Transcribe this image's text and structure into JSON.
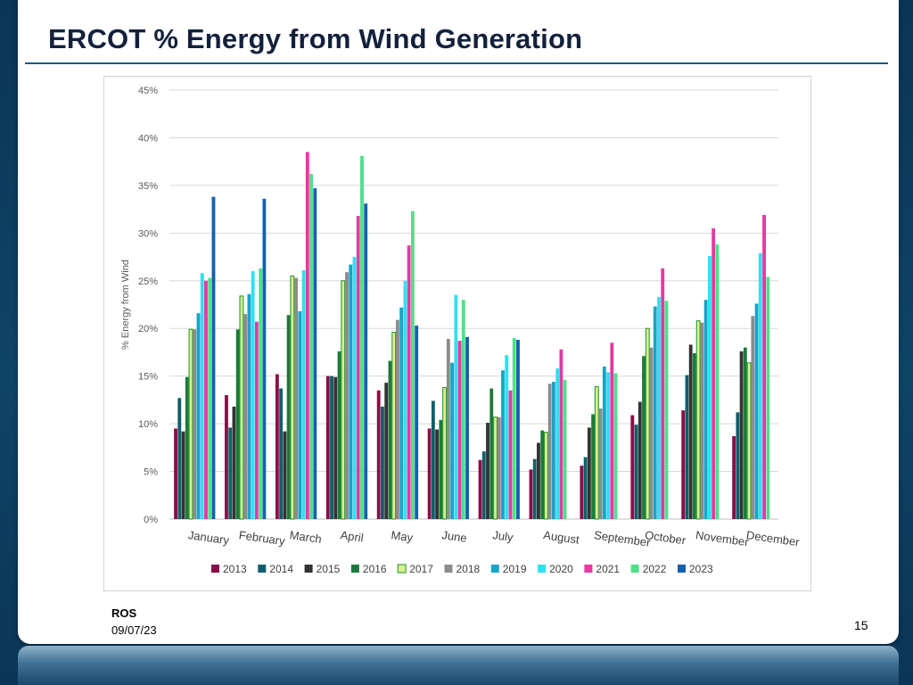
{
  "slide": {
    "title": "ERCOT % Energy from Wind Generation",
    "footer_org": "ROS",
    "footer_date": "09/07/23",
    "page_number": "15"
  },
  "chart_data": {
    "type": "bar",
    "title": "",
    "xlabel": "",
    "ylabel": "% Energy from Wind",
    "ylim": [
      0,
      45
    ],
    "y_ticks": [
      0,
      5,
      10,
      15,
      20,
      25,
      30,
      35,
      40,
      45
    ],
    "y_tick_labels": [
      "0%",
      "5%",
      "10%",
      "15%",
      "20%",
      "25%",
      "30%",
      "35%",
      "40%",
      "45%"
    ],
    "grid": true,
    "legend_position": "bottom",
    "categories": [
      "January",
      "February",
      "March",
      "April",
      "May",
      "June",
      "July",
      "August",
      "September",
      "October",
      "November",
      "December"
    ],
    "series": [
      {
        "name": "2013",
        "color": "#8b0d47",
        "values": [
          9.5,
          13.0,
          15.2,
          15.0,
          13.5,
          9.5,
          6.2,
          5.2,
          5.6,
          10.9,
          11.4,
          8.7
        ]
      },
      {
        "name": "2014",
        "color": "#0f5f6a",
        "values": [
          12.7,
          9.6,
          13.7,
          15.0,
          11.8,
          12.4,
          7.1,
          6.3,
          6.5,
          9.9,
          15.1,
          11.2
        ]
      },
      {
        "name": "2015",
        "color": "#333333",
        "values": [
          9.2,
          11.8,
          9.2,
          14.9,
          14.3,
          9.4,
          10.1,
          8.0,
          9.6,
          12.3,
          18.3,
          17.6
        ]
      },
      {
        "name": "2016",
        "color": "#1e7a3c",
        "values": [
          14.9,
          19.9,
          21.4,
          17.6,
          16.6,
          10.4,
          13.7,
          9.3,
          11.0,
          17.1,
          17.4,
          18.0
        ]
      },
      {
        "name": "2017",
        "color": "#d6f28b",
        "stroke": "#2f9a3c",
        "values": [
          19.9,
          23.4,
          25.5,
          25.0,
          19.6,
          13.8,
          10.7,
          9.1,
          13.9,
          20.0,
          20.8,
          16.4
        ]
      },
      {
        "name": "2018",
        "color": "#8c8c8c",
        "values": [
          19.9,
          21.5,
          25.3,
          25.9,
          20.9,
          18.9,
          10.7,
          14.2,
          11.6,
          18.0,
          20.6,
          21.3
        ]
      },
      {
        "name": "2019",
        "color": "#1aa3c7",
        "values": [
          21.6,
          23.6,
          21.8,
          26.7,
          22.2,
          16.4,
          15.6,
          14.4,
          16.0,
          22.3,
          23.0,
          22.6
        ]
      },
      {
        "name": "2020",
        "color": "#2fe0f2",
        "values": [
          25.8,
          26.0,
          26.1,
          27.5,
          25.0,
          23.5,
          17.2,
          15.8,
          15.4,
          23.3,
          27.6,
          27.9
        ]
      },
      {
        "name": "2021",
        "color": "#e23aa0",
        "values": [
          25.0,
          20.7,
          38.5,
          31.8,
          28.7,
          18.7,
          13.5,
          17.8,
          18.5,
          26.3,
          30.5,
          31.9
        ]
      },
      {
        "name": "2022",
        "color": "#4fe08a",
        "values": [
          25.3,
          26.3,
          36.2,
          38.1,
          32.3,
          23.0,
          19.0,
          14.6,
          15.3,
          22.9,
          28.8,
          25.4
        ]
      },
      {
        "name": "2023",
        "color": "#1560b0",
        "values": [
          33.8,
          33.6,
          34.7,
          33.1,
          20.3,
          19.1,
          18.8,
          null,
          null,
          null,
          null,
          null
        ]
      }
    ]
  }
}
